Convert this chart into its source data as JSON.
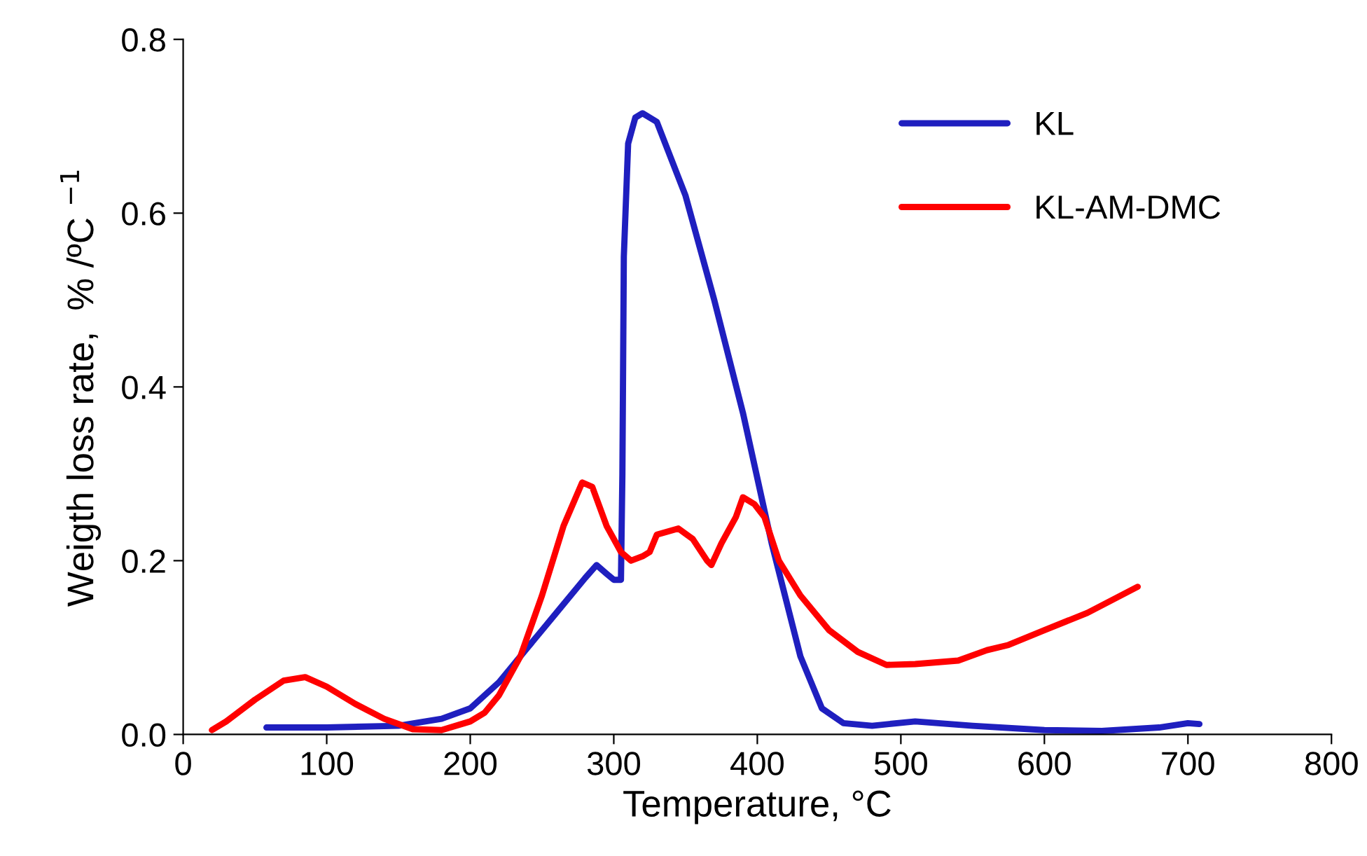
{
  "chart_data": {
    "type": "line",
    "xlabel": "Temperature, °C",
    "ylabel": "Weigth loss rate,  % /ºC $^{−1}$",
    "xlim": [
      0,
      800
    ],
    "xticks": [
      0,
      100,
      200,
      300,
      400,
      500,
      600,
      700,
      800
    ],
    "ylim": [
      0,
      0.8
    ],
    "yticks": [
      {
        "value": 0,
        "label": "0.0"
      },
      {
        "value": 0.2,
        "label": "0.2"
      },
      {
        "value": 0.4,
        "label": "0.4"
      },
      {
        "value": 0.6,
        "label": "0.6"
      },
      {
        "value": 0.8,
        "label": "0.8"
      }
    ],
    "grid": false,
    "legend": "top right",
    "marker": "none",
    "line_style": "solid",
    "series": [
      {
        "name": "KL",
        "color": "#1f1fbf",
        "x": [
          58,
          100,
          150,
          180,
          200,
          220,
          240,
          260,
          280,
          288,
          295,
          300,
          305,
          306,
          307,
          310,
          315,
          320,
          330,
          350,
          370,
          390,
          410,
          430,
          445,
          460,
          480,
          510,
          550,
          600,
          640,
          680,
          700,
          708
        ],
        "values": [
          0.008,
          0.008,
          0.01,
          0.018,
          0.03,
          0.06,
          0.1,
          0.14,
          0.18,
          0.195,
          0.185,
          0.178,
          0.178,
          0.3,
          0.55,
          0.68,
          0.71,
          0.715,
          0.705,
          0.62,
          0.5,
          0.37,
          0.22,
          0.09,
          0.03,
          0.013,
          0.01,
          0.015,
          0.01,
          0.005,
          0.004,
          0.008,
          0.013,
          0.012
        ]
      },
      {
        "name": "KL-AM-DMC",
        "color": "#ff0000",
        "x": [
          20,
          30,
          50,
          70,
          85,
          100,
          120,
          140,
          160,
          180,
          200,
          210,
          220,
          235,
          250,
          265,
          278,
          285,
          295,
          305,
          312,
          320,
          325,
          330,
          345,
          355,
          365,
          368,
          375,
          385,
          390,
          398,
          405,
          415,
          430,
          450,
          470,
          490,
          510,
          540,
          560,
          575,
          600,
          630,
          665
        ],
        "values": [
          0.005,
          0.015,
          0.04,
          0.062,
          0.066,
          0.055,
          0.035,
          0.018,
          0.006,
          0.005,
          0.015,
          0.025,
          0.045,
          0.09,
          0.16,
          0.24,
          0.29,
          0.285,
          0.24,
          0.21,
          0.2,
          0.205,
          0.21,
          0.23,
          0.237,
          0.225,
          0.2,
          0.195,
          0.22,
          0.25,
          0.273,
          0.265,
          0.25,
          0.2,
          0.16,
          0.12,
          0.095,
          0.08,
          0.081,
          0.085,
          0.097,
          0.103,
          0.12,
          0.14,
          0.17
        ]
      }
    ]
  }
}
